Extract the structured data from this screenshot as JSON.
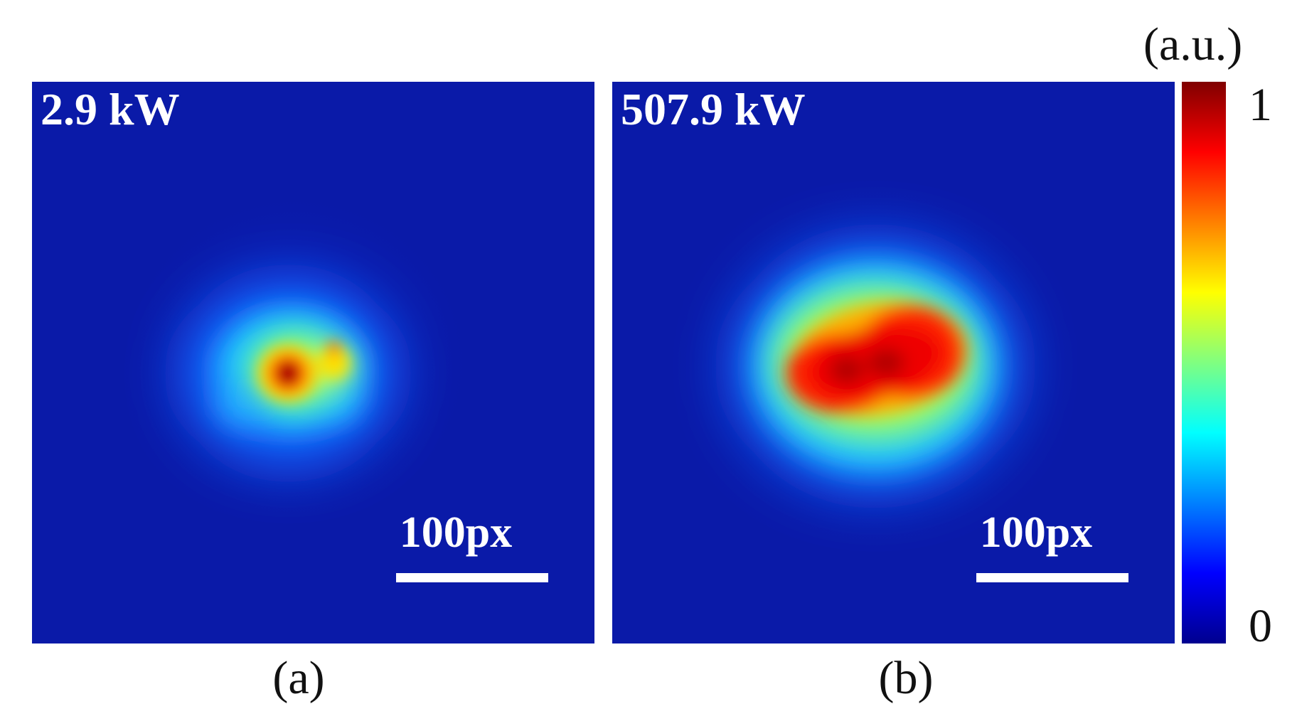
{
  "panels": [
    {
      "power_label": "2.9 kW",
      "scale_label": "100px",
      "caption": "(a)"
    },
    {
      "power_label": "507.9 kW",
      "scale_label": "100px",
      "caption": "(b)"
    }
  ],
  "colorbar": {
    "unit": "(a.u.)",
    "max_label": "1",
    "min_label": "0",
    "colormap": "jet",
    "colors": [
      "#00008f",
      "#0000ff",
      "#0080ff",
      "#00ffff",
      "#80ff80",
      "#ffff00",
      "#ff8000",
      "#ff0000",
      "#800000"
    ]
  },
  "colors": {
    "background_field": "#0a1aa8"
  }
}
